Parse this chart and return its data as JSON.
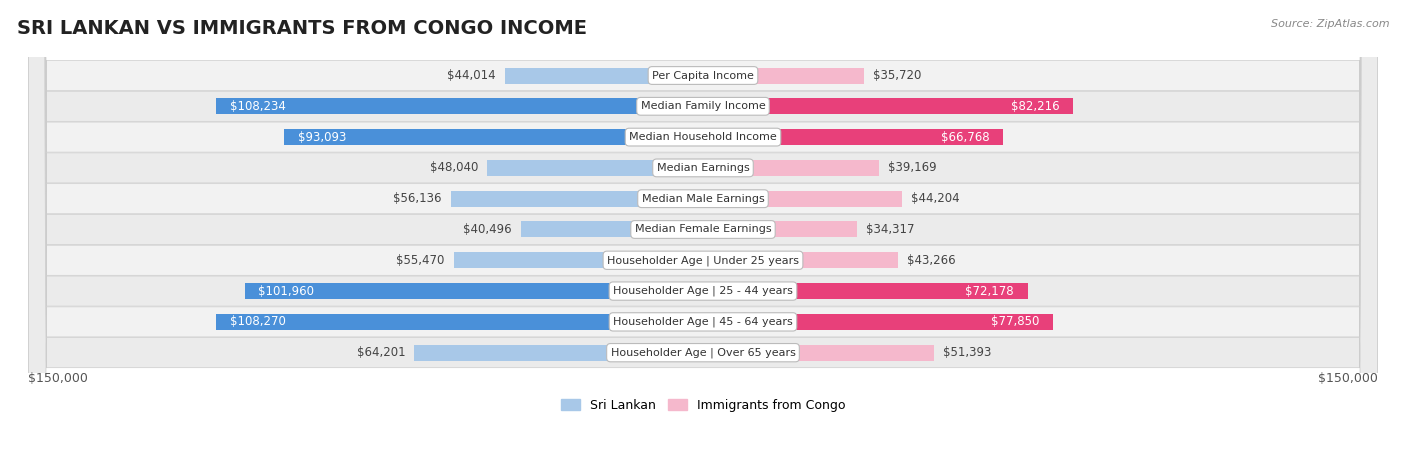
{
  "title": "SRI LANKAN VS IMMIGRANTS FROM CONGO INCOME",
  "source": "Source: ZipAtlas.com",
  "categories": [
    "Per Capita Income",
    "Median Family Income",
    "Median Household Income",
    "Median Earnings",
    "Median Male Earnings",
    "Median Female Earnings",
    "Householder Age | Under 25 years",
    "Householder Age | 25 - 44 years",
    "Householder Age | 45 - 64 years",
    "Householder Age | Over 65 years"
  ],
  "sri_lankan": [
    44014,
    108234,
    93093,
    48040,
    56136,
    40496,
    55470,
    101960,
    108270,
    64201
  ],
  "congo": [
    35720,
    82216,
    66768,
    39169,
    44204,
    34317,
    43266,
    72178,
    77850,
    51393
  ],
  "sri_lankan_labels": [
    "$44,014",
    "$108,234",
    "$93,093",
    "$48,040",
    "$56,136",
    "$40,496",
    "$55,470",
    "$101,960",
    "$108,270",
    "$64,201"
  ],
  "congo_labels": [
    "$35,720",
    "$82,216",
    "$66,768",
    "$39,169",
    "$44,204",
    "$34,317",
    "$43,266",
    "$72,178",
    "$77,850",
    "$51,393"
  ],
  "max_value": 150000,
  "sl_light_color": "#a8c8e8",
  "sl_dark_color": "#4a90d9",
  "cg_light_color": "#f5b8cc",
  "cg_dark_color": "#e8407a",
  "row_light_color": "#f8f8f8",
  "row_border_color": "#d0d0d0",
  "background_color": "#ffffff",
  "legend_sri_lankan": "Sri Lankan",
  "legend_congo": "Immigrants from Congo",
  "x_label_left": "$150,000",
  "x_label_right": "$150,000",
  "title_fontsize": 14,
  "label_fontsize": 8.5,
  "category_fontsize": 8,
  "axis_label_fontsize": 9,
  "large_threshold": 65000
}
